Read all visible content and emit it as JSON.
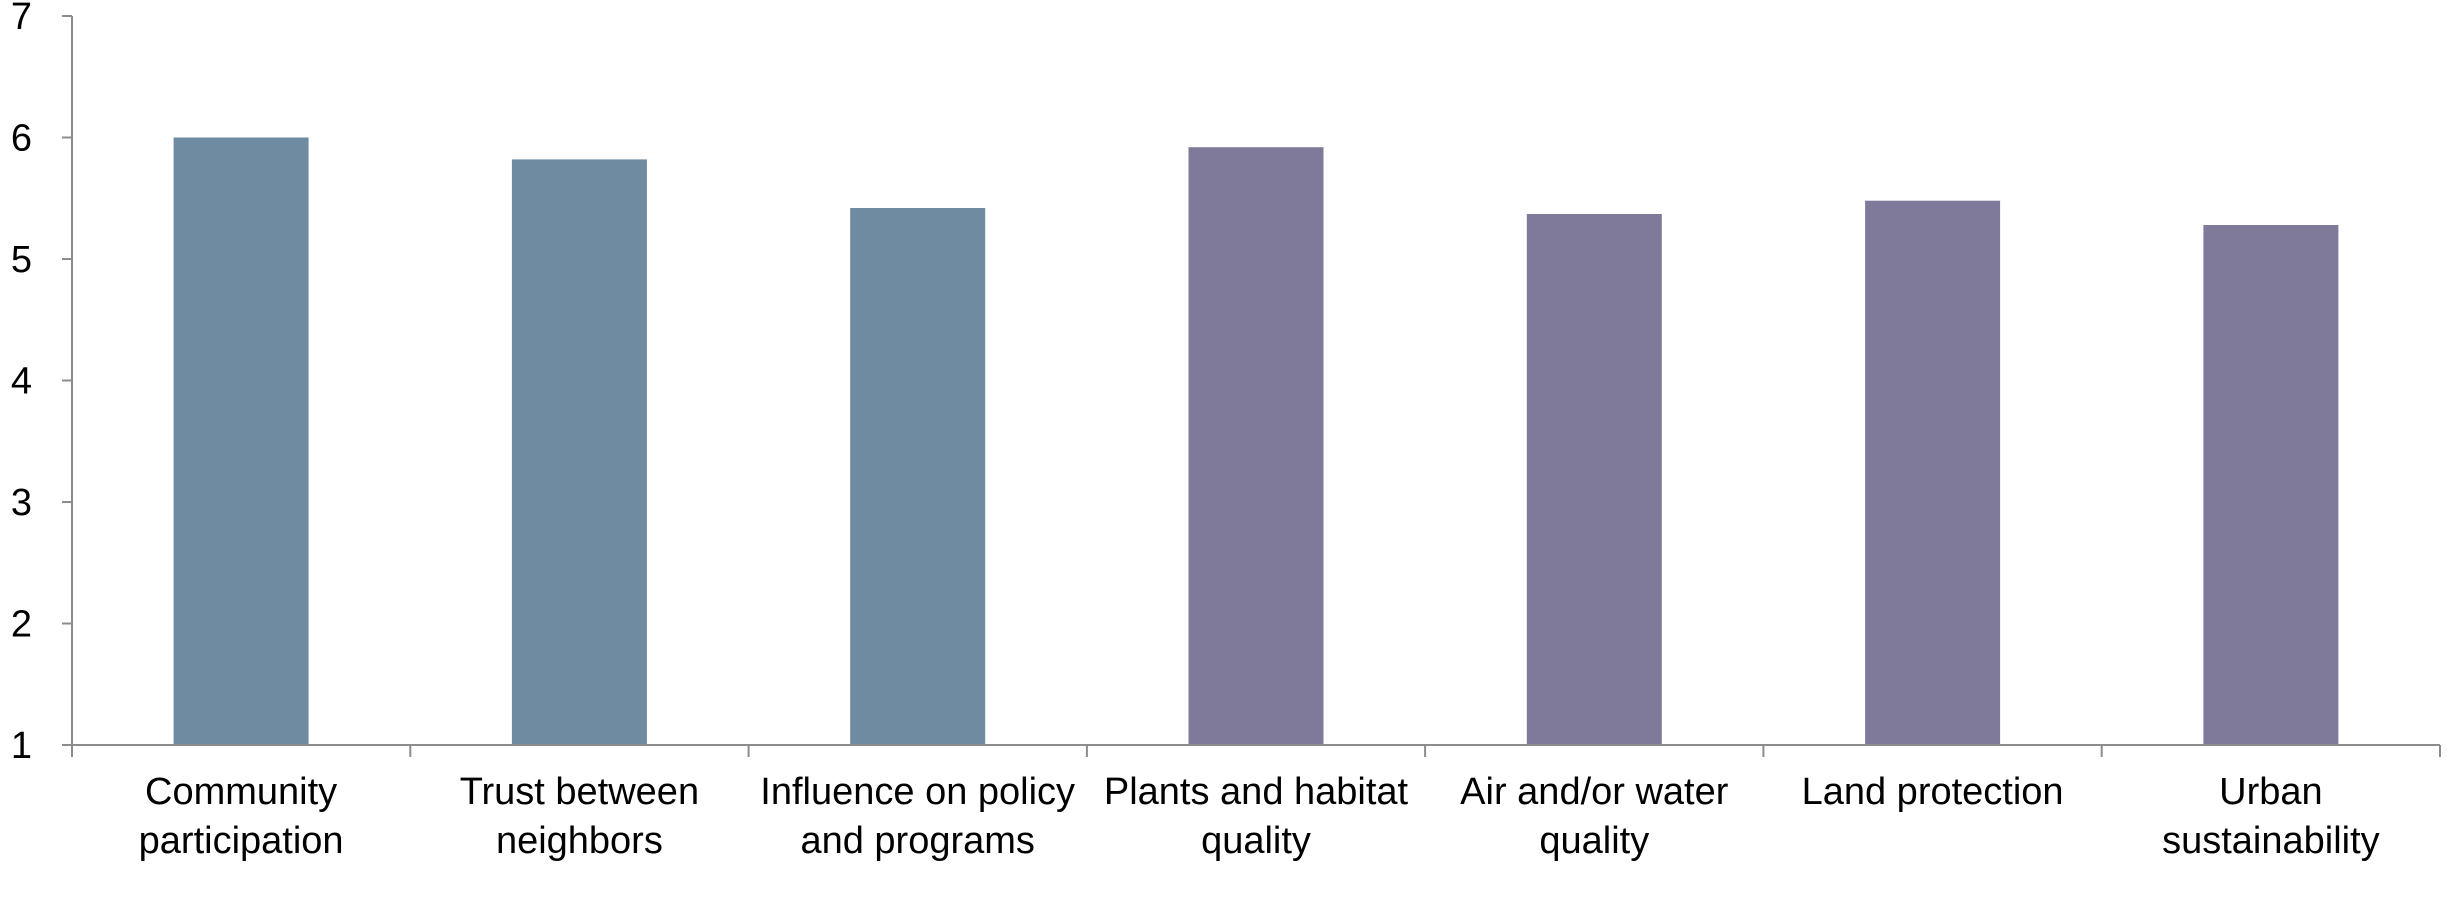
{
  "colors": {
    "social": "#6F8BA2",
    "environmental": "#807A9A",
    "axis": "#8C8C8C"
  },
  "chart_data": {
    "type": "bar",
    "title": "",
    "xlabel": "",
    "ylabel": "",
    "ylim": [
      1,
      7
    ],
    "yticks": [
      "1",
      "2",
      "3",
      "4",
      "5",
      "6",
      "7"
    ],
    "grid": false,
    "categories": [
      "Community participation",
      "Trust between neighbors",
      "Influence on policy and programs",
      "Plants and habitat quality",
      "Air and/or water quality",
      "Land protection",
      "Urban sustainability"
    ],
    "values": [
      6.0,
      5.82,
      5.42,
      5.92,
      5.37,
      5.48,
      5.28
    ],
    "bar_colors": [
      "social",
      "social",
      "social",
      "environmental",
      "environmental",
      "environmental",
      "environmental"
    ]
  }
}
